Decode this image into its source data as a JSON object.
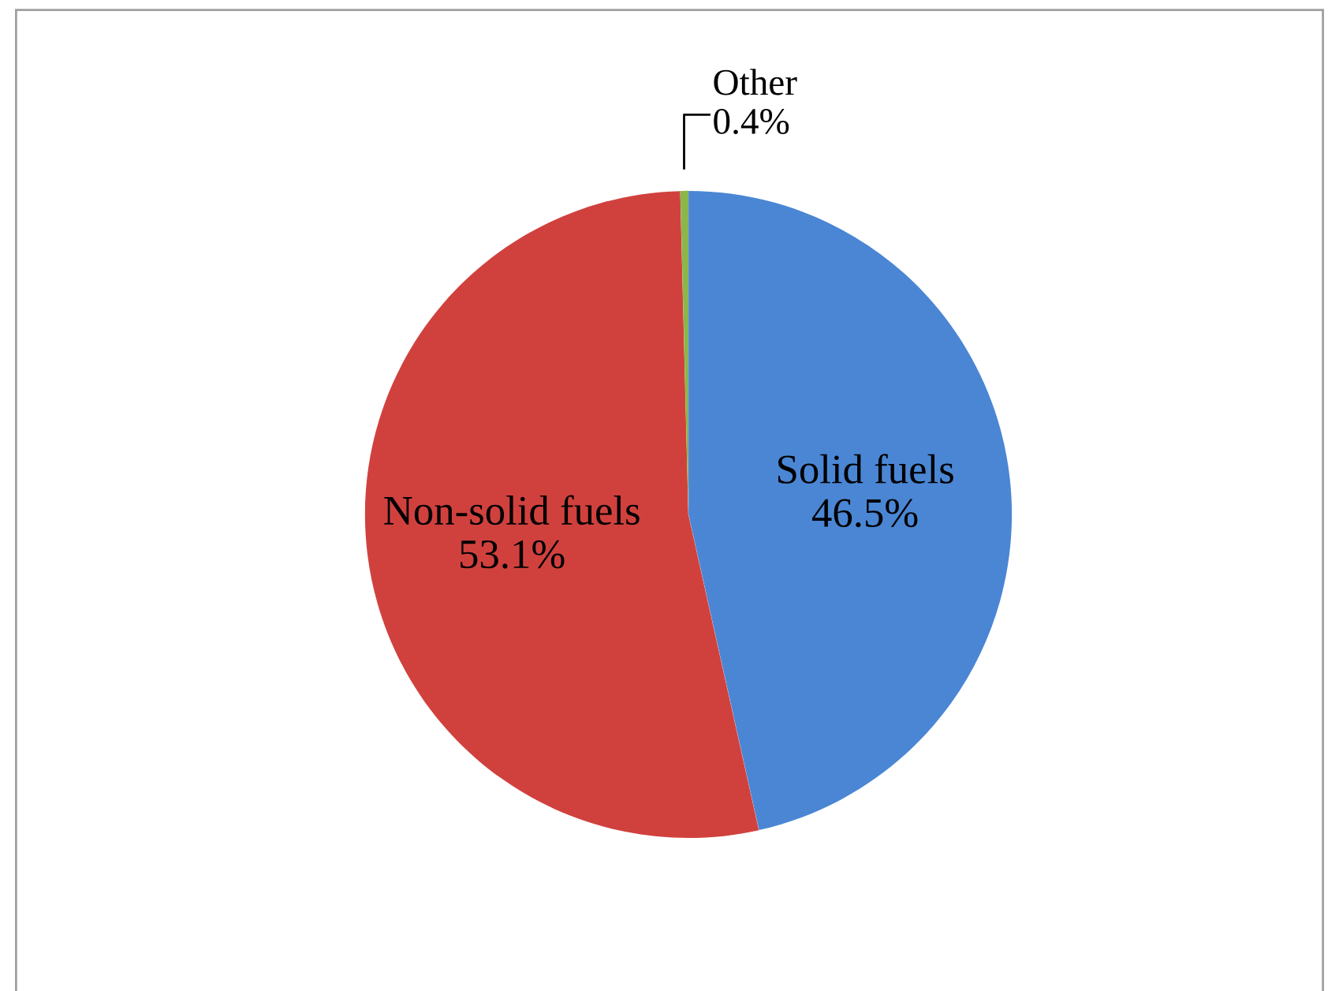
{
  "chart_data": {
    "type": "pie",
    "categories": [
      "Solid fuels",
      "Non-solid fuels",
      "Other"
    ],
    "values": [
      46.5,
      53.1,
      0.4
    ],
    "value_labels": [
      "46.5%",
      "53.1%",
      "0.4%"
    ],
    "colors": [
      "#4a86d4",
      "#d0413e",
      "#8bb64a"
    ],
    "legend": false
  }
}
